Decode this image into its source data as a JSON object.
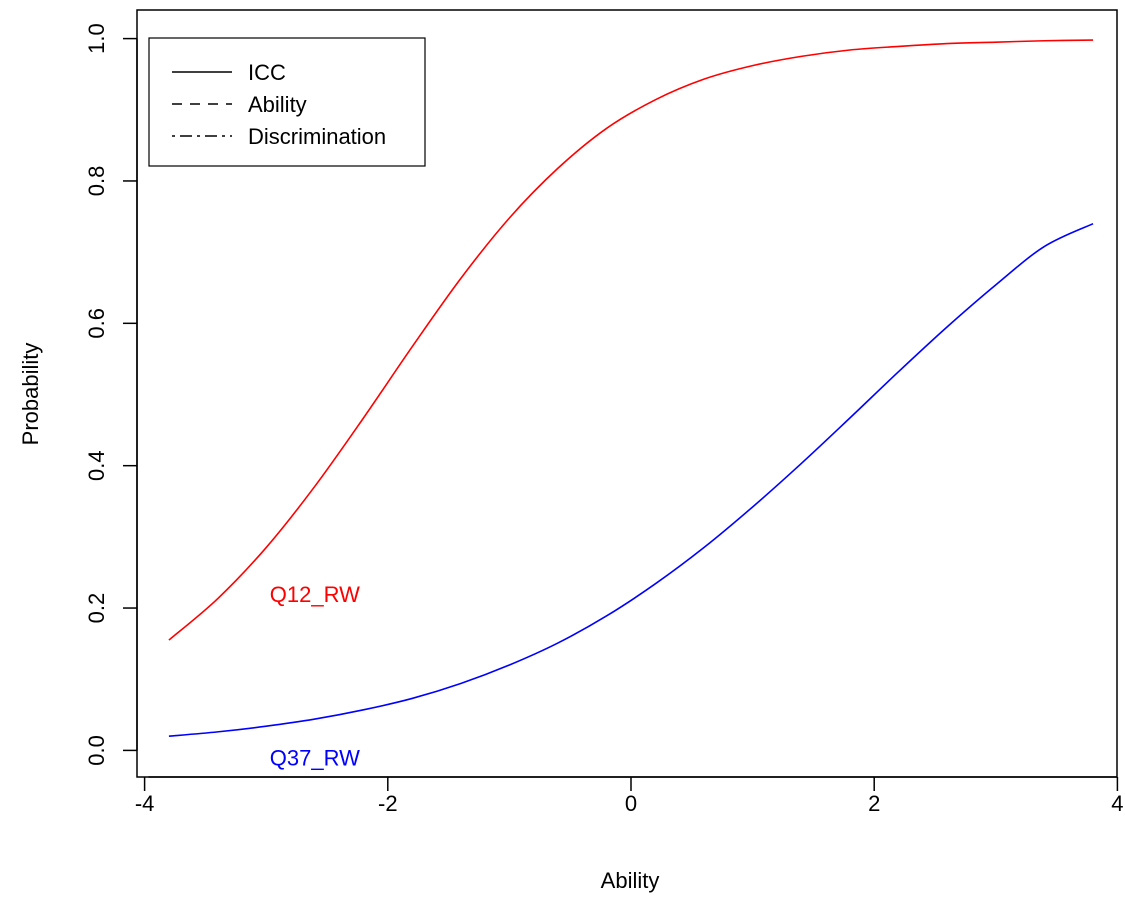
{
  "chart_data": {
    "type": "line",
    "title": "",
    "xlabel": "Ability",
    "ylabel": "Probability",
    "xlim": [
      -3.8,
      3.8
    ],
    "ylim": [
      0.0,
      1.0
    ],
    "x_ticks": [
      -4,
      -2,
      0,
      2,
      4
    ],
    "x_tick_labels": [
      "-4",
      "-2",
      "0",
      "2",
      "4"
    ],
    "y_ticks": [
      0.0,
      0.2,
      0.4,
      0.6,
      0.8,
      1.0
    ],
    "y_tick_labels": [
      "0.0",
      "0.2",
      "0.4",
      "0.6",
      "0.8",
      "1.0"
    ],
    "grid": false,
    "legend": {
      "position": "top-left",
      "entries": [
        {
          "label": "ICC",
          "line_style": "solid"
        },
        {
          "label": "Ability",
          "line_style": "dashed"
        },
        {
          "label": "Discrimination",
          "line_style": "dotdash"
        }
      ]
    },
    "series": [
      {
        "name": "Q12_RW",
        "color": "#ff0000",
        "line_style": "solid",
        "label_position": {
          "x": -2.6,
          "y": 0.22
        },
        "x": [
          -3.8,
          -3.4,
          -3.0,
          -2.6,
          -2.2,
          -1.8,
          -1.4,
          -1.0,
          -0.6,
          -0.2,
          0.2,
          0.6,
          1.0,
          1.4,
          1.8,
          2.2,
          2.6,
          3.0,
          3.4,
          3.8
        ],
        "y": [
          0.155,
          0.213,
          0.285,
          0.371,
          0.467,
          0.567,
          0.663,
          0.748,
          0.818,
          0.874,
          0.914,
          0.943,
          0.962,
          0.975,
          0.984,
          0.989,
          0.993,
          0.995,
          0.997,
          0.998
        ]
      },
      {
        "name": "Q37_RW",
        "color": "#0000ff",
        "line_style": "solid",
        "label_position": {
          "x": -2.6,
          "y": -0.01
        },
        "x": [
          -3.8,
          -3.4,
          -3.0,
          -2.6,
          -2.2,
          -1.8,
          -1.4,
          -1.0,
          -0.6,
          -0.2,
          0.2,
          0.6,
          1.0,
          1.4,
          1.8,
          2.2,
          2.6,
          3.0,
          3.4,
          3.8
        ],
        "y": [
          0.02,
          0.026,
          0.034,
          0.044,
          0.057,
          0.073,
          0.094,
          0.12,
          0.151,
          0.189,
          0.234,
          0.285,
          0.342,
          0.403,
          0.467,
          0.532,
          0.595,
          0.654,
          0.708,
          0.74
        ]
      }
    ]
  }
}
